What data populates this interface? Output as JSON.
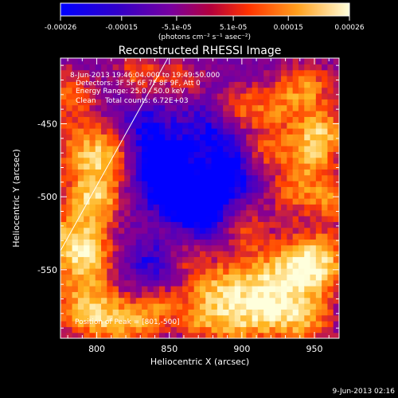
{
  "chart_data": {
    "type": "heatmap",
    "title": "Reconstructed RHESSI Image",
    "xlabel": "Heliocentric X (arcsec)",
    "ylabel": "Heliocentric Y (arcsec)",
    "xlim": [
      775,
      967
    ],
    "ylim": [
      -597,
      -405
    ],
    "x_ticks": [
      "800",
      "850",
      "900",
      "950"
    ],
    "x_tick_values": [
      800,
      850,
      900,
      950
    ],
    "y_ticks": [
      "-450",
      "-500",
      "-550"
    ],
    "y_tick_values": [
      -450,
      -500,
      -550
    ],
    "colorbar": {
      "range": [
        -0.00026,
        0.00026
      ],
      "ticks": [
        "-0.00026",
        "-0.00015",
        "-5.1e-05",
        "5.1e-05",
        "0.00015",
        "0.00026"
      ],
      "tick_values": [
        -0.00026,
        -0.00015,
        -5.1e-05,
        5.1e-05,
        0.00015,
        0.00026
      ],
      "units": "(photons cm⁻² s⁻¹ asec⁻²)"
    },
    "annotations": [
      "8-Jun-2013 19:46:04.000 to 19:49:50.000",
      "Detectors: 3F 5F 6F 7F 8F 9F, Att 0",
      "Energy Range: 25.0 - 50.0 keV",
      "Clean    Total counts: 6.72E+03"
    ],
    "peak_label": "Position of Peak = [801,-500]",
    "peak": [
      801,
      -500
    ],
    "limb_line": [
      [
        775,
        -537
      ],
      [
        849,
        -405
      ]
    ],
    "timestamp": "9-Jun-2013 02:16",
    "colormap": [
      "#0000ff",
      "#5a00b4",
      "#8c008c",
      "#ff3c00",
      "#ffb41e",
      "#ffffdc"
    ],
    "hot_spots": [
      [
        800,
        -500,
        1.0,
        14
      ],
      [
        790,
        -470,
        0.75,
        16
      ],
      [
        812,
        -468,
        0.7,
        12
      ],
      [
        780,
        -530,
        0.8,
        16
      ],
      [
        795,
        -540,
        0.7,
        14
      ],
      [
        782,
        -430,
        0.65,
        14
      ],
      [
        790,
        -575,
        0.85,
        16
      ],
      [
        812,
        -585,
        0.7,
        14
      ],
      [
        835,
        -585,
        0.6,
        12
      ],
      [
        830,
        -415,
        0.65,
        12
      ],
      [
        860,
        -418,
        0.55,
        10
      ],
      [
        895,
        -440,
        0.55,
        12
      ],
      [
        920,
        -440,
        0.6,
        14
      ],
      [
        945,
        -425,
        0.75,
        14
      ],
      [
        958,
        -455,
        0.7,
        12
      ],
      [
        945,
        -470,
        0.8,
        14
      ],
      [
        915,
        -470,
        0.5,
        10
      ],
      [
        935,
        -497,
        0.6,
        12
      ],
      [
        962,
        -500,
        0.7,
        12
      ],
      [
        955,
        -545,
        0.9,
        16
      ],
      [
        935,
        -550,
        0.8,
        16
      ],
      [
        905,
        -560,
        0.75,
        16
      ],
      [
        880,
        -565,
        0.7,
        14
      ],
      [
        920,
        -580,
        0.8,
        14
      ],
      [
        945,
        -585,
        0.75,
        14
      ],
      [
        895,
        -590,
        0.65,
        12
      ],
      [
        862,
        -540,
        0.55,
        12
      ],
      [
        870,
        -585,
        0.6,
        12
      ],
      [
        902,
        -520,
        0.55,
        12
      ],
      [
        870,
        -475,
        0.35,
        10
      ],
      [
        843,
        -520,
        0.3,
        10
      ],
      [
        845,
        -570,
        0.45,
        10
      ]
    ],
    "cold_spots": [
      [
        850,
        -485,
        -0.9,
        18
      ],
      [
        870,
        -510,
        -0.75,
        16
      ],
      [
        830,
        -455,
        -0.5,
        14
      ],
      [
        880,
        -455,
        -0.5,
        14
      ],
      [
        890,
        -485,
        -0.6,
        14
      ],
      [
        840,
        -545,
        -0.45,
        14
      ]
    ]
  }
}
